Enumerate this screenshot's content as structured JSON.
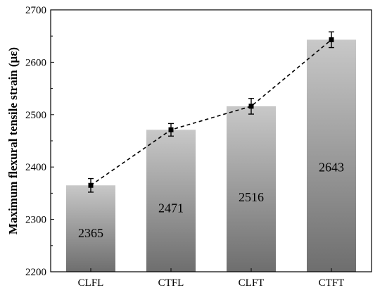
{
  "chart_data": {
    "type": "bar",
    "categories": [
      "CLFL",
      "CTFL",
      "CLFT",
      "CTFT"
    ],
    "values": [
      2365,
      2471,
      2516,
      2643
    ],
    "data_labels": [
      "2365",
      "2471",
      "2516",
      "2643"
    ],
    "overlay_line": {
      "type": "line",
      "style": "dashed",
      "marker": "square",
      "values": [
        2365,
        2471,
        2516,
        2643
      ],
      "error": [
        13,
        12,
        15,
        15
      ]
    },
    "title": "",
    "xlabel": "",
    "ylabel": "Maximum flexural tensile strain (με)",
    "ylim": [
      2200,
      2700
    ],
    "yticks": [
      2200,
      2300,
      2400,
      2500,
      2600,
      2700
    ],
    "ytick_labels": [
      "2200",
      "2300",
      "2400",
      "2500",
      "2600",
      "2700"
    ],
    "grid": false,
    "legend": "none",
    "colors": {
      "bar_top": "#c8c8c8",
      "bar_bottom": "#6e6e6e",
      "line": "#000000",
      "axis": "#000000"
    }
  }
}
